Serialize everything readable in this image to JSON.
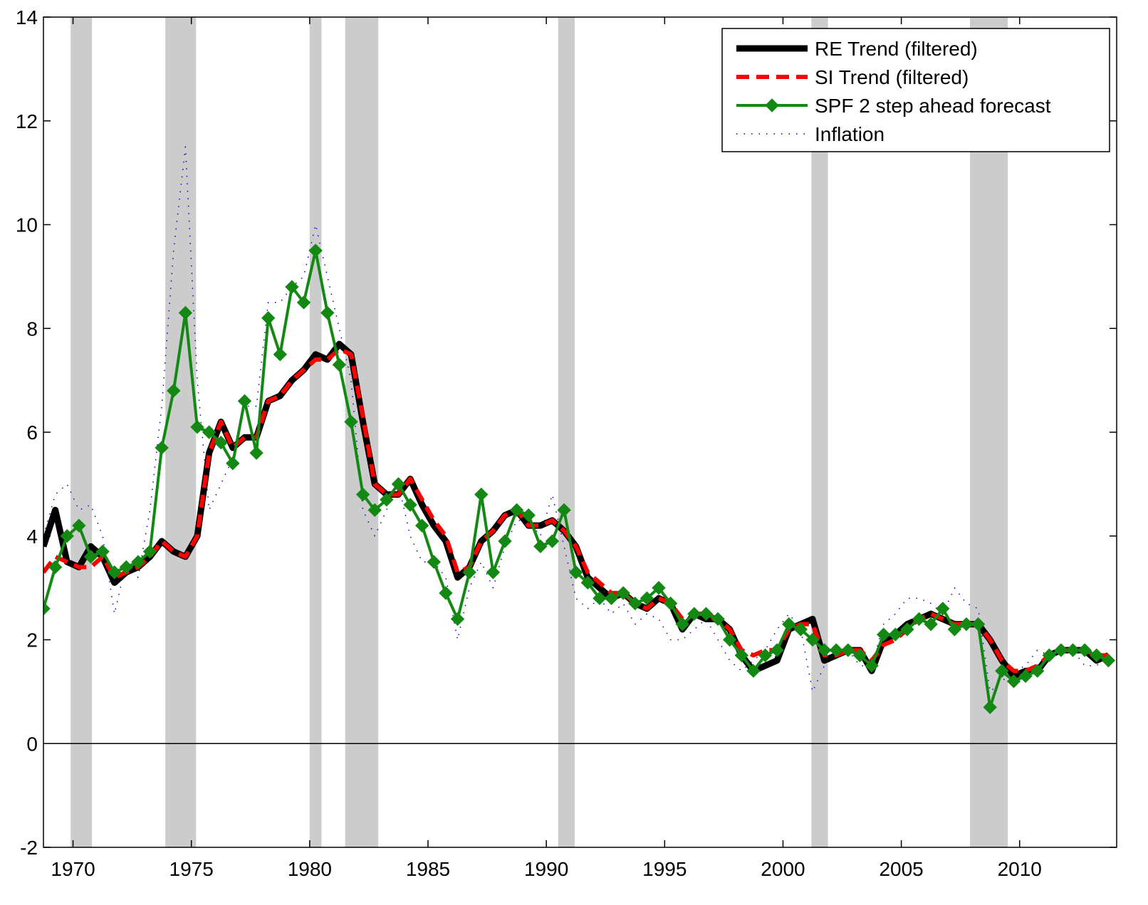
{
  "chart_data": {
    "type": "line",
    "xlim": [
      1968.75,
      2014.1
    ],
    "ylim": [
      -2,
      14
    ],
    "xticks": [
      1970,
      1975,
      1980,
      1985,
      1990,
      1995,
      2000,
      2005,
      2010
    ],
    "yticks": [
      -2,
      0,
      2,
      4,
      6,
      8,
      10,
      12,
      14
    ],
    "legend": "top-right",
    "recessions": [
      [
        1969.9,
        1970.8
      ],
      [
        1973.9,
        1975.2
      ],
      [
        1980.0,
        1980.5
      ],
      [
        1981.5,
        1982.9
      ],
      [
        1990.5,
        1991.2
      ],
      [
        2001.2,
        2001.9
      ],
      [
        2007.9,
        2009.5
      ]
    ],
    "recession_color": "#cccccc",
    "x": [
      1968.75,
      1969.25,
      1969.75,
      1970.25,
      1970.75,
      1971.25,
      1971.75,
      1972.25,
      1972.75,
      1973.25,
      1973.75,
      1974.25,
      1974.75,
      1975.25,
      1975.75,
      1976.25,
      1976.75,
      1977.25,
      1977.75,
      1978.25,
      1978.75,
      1979.25,
      1979.75,
      1980.25,
      1980.75,
      1981.25,
      1981.75,
      1982.25,
      1982.75,
      1983.25,
      1983.75,
      1984.25,
      1984.75,
      1985.25,
      1985.75,
      1986.25,
      1986.75,
      1987.25,
      1987.75,
      1988.25,
      1988.75,
      1989.25,
      1989.75,
      1990.25,
      1990.75,
      1991.25,
      1991.75,
      1992.25,
      1992.75,
      1993.25,
      1993.75,
      1994.25,
      1994.75,
      1995.25,
      1995.75,
      1996.25,
      1996.75,
      1997.25,
      1997.75,
      1998.25,
      1998.75,
      1999.25,
      1999.75,
      2000.25,
      2000.75,
      2001.25,
      2001.75,
      2002.25,
      2002.75,
      2003.25,
      2003.75,
      2004.25,
      2004.75,
      2005.25,
      2005.75,
      2006.25,
      2006.75,
      2007.25,
      2007.75,
      2008.25,
      2008.75,
      2009.25,
      2009.75,
      2010.25,
      2010.75,
      2011.25,
      2011.75,
      2012.25,
      2012.75,
      2013.25,
      2013.75
    ],
    "series": [
      {
        "name": "Inflation",
        "color": "#0000cc",
        "style": "dotted",
        "width": 1.5,
        "legend_order": 3,
        "values": [
          4.0,
          4.8,
          5.0,
          4.5,
          4.6,
          4.0,
          2.5,
          3.5,
          3.2,
          4.5,
          6.5,
          9.5,
          11.5,
          7.0,
          4.5,
          5.0,
          5.5,
          6.5,
          6.5,
          8.5,
          8.5,
          8.8,
          9.0,
          10.0,
          9.0,
          8.0,
          7.0,
          4.5,
          4.0,
          4.5,
          5.0,
          4.0,
          3.5,
          3.5,
          3.2,
          2.0,
          3.0,
          3.5,
          3.0,
          3.8,
          4.3,
          4.3,
          4.0,
          4.8,
          3.8,
          2.8,
          2.6,
          2.8,
          2.5,
          2.7,
          2.3,
          2.5,
          2.4,
          2.0,
          2.0,
          2.2,
          2.4,
          2.0,
          1.6,
          1.4,
          1.6,
          1.8,
          2.2,
          2.5,
          2.2,
          1.0,
          1.5,
          1.7,
          1.8,
          1.5,
          1.5,
          2.3,
          2.5,
          2.8,
          2.8,
          2.7,
          2.5,
          3.0,
          2.7,
          2.6,
          1.0,
          1.2,
          1.4,
          1.5,
          1.8,
          1.7,
          1.9,
          1.8,
          1.5,
          1.5,
          1.7
        ]
      },
      {
        "name": "RE Trend (filtered)",
        "color": "#000000",
        "style": "solid",
        "width": 9,
        "legend_order": 0,
        "values": [
          3.8,
          4.5,
          3.5,
          3.4,
          3.8,
          3.6,
          3.1,
          3.3,
          3.4,
          3.6,
          3.9,
          3.7,
          3.6,
          4.0,
          5.6,
          6.2,
          5.7,
          5.9,
          5.9,
          6.6,
          6.7,
          7.0,
          7.2,
          7.5,
          7.4,
          7.7,
          7.5,
          6.2,
          5.0,
          4.8,
          4.8,
          5.1,
          4.6,
          4.2,
          3.9,
          3.2,
          3.4,
          3.9,
          4.1,
          4.4,
          4.5,
          4.2,
          4.2,
          4.3,
          4.1,
          3.8,
          3.2,
          3.0,
          2.8,
          2.9,
          2.7,
          2.6,
          2.8,
          2.7,
          2.2,
          2.5,
          2.4,
          2.4,
          2.2,
          1.7,
          1.4,
          1.5,
          1.6,
          2.2,
          2.3,
          2.4,
          1.6,
          1.7,
          1.8,
          1.8,
          1.4,
          2.0,
          2.1,
          2.3,
          2.4,
          2.5,
          2.4,
          2.3,
          2.3,
          2.3,
          2.0,
          1.6,
          1.3,
          1.4,
          1.4,
          1.7,
          1.8,
          1.8,
          1.8,
          1.6,
          1.7
        ]
      },
      {
        "name": "SI Trend (filtered)",
        "color": "#ff0000",
        "style": "dashed",
        "width": 6,
        "legend_order": 1,
        "values": [
          3.3,
          3.6,
          3.5,
          3.4,
          3.4,
          3.6,
          3.2,
          3.3,
          3.4,
          3.6,
          3.9,
          3.7,
          3.6,
          4.0,
          5.6,
          6.2,
          5.7,
          5.9,
          5.9,
          6.6,
          6.7,
          7.0,
          7.2,
          7.4,
          7.4,
          7.6,
          7.5,
          6.3,
          5.0,
          4.8,
          4.8,
          5.1,
          4.7,
          4.3,
          4.0,
          3.3,
          3.4,
          3.9,
          4.1,
          4.4,
          4.5,
          4.2,
          4.2,
          4.3,
          4.1,
          3.8,
          3.3,
          3.1,
          2.9,
          2.9,
          2.7,
          2.6,
          2.8,
          2.7,
          2.4,
          2.5,
          2.5,
          2.4,
          2.2,
          1.8,
          1.7,
          1.8,
          1.8,
          2.2,
          2.3,
          2.3,
          1.7,
          1.7,
          1.8,
          1.8,
          1.6,
          1.9,
          2.0,
          2.2,
          2.4,
          2.5,
          2.4,
          2.3,
          2.3,
          2.3,
          2.0,
          1.6,
          1.4,
          1.4,
          1.5,
          1.7,
          1.8,
          1.8,
          1.8,
          1.7,
          1.7
        ]
      },
      {
        "name": "SPF 2 step ahead forecast",
        "color": "#138913",
        "style": "solid",
        "width": 4,
        "marker": "diamond",
        "legend_order": 2,
        "values": [
          2.6,
          3.4,
          4.0,
          4.2,
          3.6,
          3.7,
          3.3,
          3.4,
          3.5,
          3.7,
          5.7,
          6.8,
          8.3,
          6.1,
          6.0,
          5.8,
          5.4,
          6.6,
          5.6,
          8.2,
          7.5,
          8.8,
          8.5,
          9.5,
          8.3,
          7.3,
          6.2,
          4.8,
          4.5,
          4.7,
          5.0,
          4.6,
          4.2,
          3.5,
          2.9,
          2.4,
          3.3,
          4.8,
          3.3,
          3.9,
          4.5,
          4.4,
          3.8,
          3.9,
          4.5,
          3.3,
          3.1,
          2.8,
          2.8,
          2.9,
          2.7,
          2.8,
          3.0,
          2.7,
          2.3,
          2.5,
          2.5,
          2.4,
          2.0,
          1.7,
          1.4,
          1.7,
          1.8,
          2.3,
          2.2,
          2.0,
          1.8,
          1.8,
          1.8,
          1.7,
          1.5,
          2.1,
          2.1,
          2.2,
          2.4,
          2.3,
          2.6,
          2.2,
          2.3,
          2.3,
          0.7,
          1.4,
          1.2,
          1.3,
          1.4,
          1.7,
          1.8,
          1.8,
          1.8,
          1.7,
          1.6
        ]
      }
    ]
  }
}
